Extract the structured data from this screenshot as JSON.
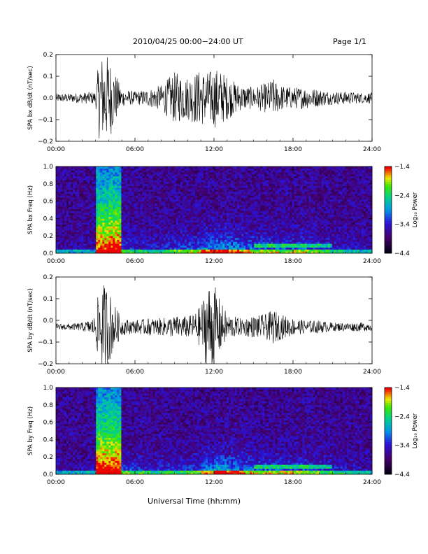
{
  "header": {
    "title": "2010/04/25  00:00−24:00 UT",
    "page": "Page 1/1"
  },
  "xlabel": "Universal Time (hh:mm)",
  "chart_data": [
    {
      "type": "line",
      "panel": "bx-waveform",
      "ylabel": "SPA bx dB/dt (nT/sec)",
      "xlim_hours": [
        0,
        24
      ],
      "ylim": [
        -0.2,
        0.2
      ],
      "x_ticks": [
        "00:00",
        "06:00",
        "12:00",
        "18:00",
        "24:00"
      ],
      "y_ticks": [
        "−0.2",
        "−0.1",
        "0.0",
        "0.1",
        "0.2"
      ],
      "series": [
        {
          "x": [
            0,
            1,
            2,
            3,
            3.3,
            3.5,
            3.8,
            4.0,
            4.3,
            5,
            6,
            7,
            8,
            8.5,
            9,
            10,
            10.5,
            11,
            11.5,
            12,
            12.5,
            13,
            14,
            15,
            16,
            16.5,
            17,
            18,
            19,
            20,
            21,
            22,
            23,
            24
          ],
          "envelope": [
            0.02,
            0.02,
            0.025,
            0.03,
            0.2,
            0.2,
            0.2,
            0.2,
            0.15,
            0.04,
            0.03,
            0.04,
            0.06,
            0.09,
            0.12,
            0.1,
            0.12,
            0.13,
            0.12,
            0.14,
            0.13,
            0.1,
            0.06,
            0.05,
            0.07,
            0.09,
            0.06,
            0.05,
            0.05,
            0.04,
            0.03,
            0.03,
            0.025,
            0.025
          ],
          "offset": 0.0
        }
      ]
    },
    {
      "type": "heatmap",
      "panel": "bx-spectrogram",
      "ylabel": "SPA bx Freq (Hz)",
      "colorbar_label": "Log₁₀ Power",
      "colorbar_ticks": [
        "−1.4",
        "−2.4",
        "−3.4",
        "−4.4"
      ],
      "colorbar_range": [
        -4.4,
        -1.4
      ],
      "xlim_hours": [
        0,
        24
      ],
      "ylim": [
        0,
        1.0
      ],
      "x_ticks": [
        "00:00",
        "06:00",
        "12:00",
        "18:00",
        "24:00"
      ],
      "y_ticks": [
        "0.0",
        "0.2",
        "0.4",
        "0.6",
        "0.8",
        "1.0"
      ],
      "activity": [
        0.05,
        0.05,
        0.06,
        0.9,
        0.95,
        0.2,
        0.15,
        0.15,
        0.2,
        0.25,
        0.3,
        0.45,
        0.5,
        0.45,
        0.35,
        0.3,
        0.3,
        0.25,
        0.3,
        0.25,
        0.2,
        0.15,
        0.1,
        0.08
      ]
    },
    {
      "type": "line",
      "panel": "by-waveform",
      "ylabel": "SPA by dB/dt (nT/sec)",
      "xlim_hours": [
        0,
        24
      ],
      "ylim": [
        -0.2,
        0.2
      ],
      "x_ticks": [
        "00:00",
        "06:00",
        "12:00",
        "18:00",
        "24:00"
      ],
      "y_ticks": [
        "−0.2",
        "−0.1",
        "0.0",
        "0.1",
        "0.2"
      ],
      "series": [
        {
          "x": [
            0,
            1,
            2,
            2.5,
            3,
            3.3,
            3.5,
            3.8,
            4.0,
            4.3,
            5,
            6,
            7,
            8,
            9,
            10,
            10.5,
            11,
            11.5,
            12,
            12.5,
            13,
            14,
            15,
            16,
            16.5,
            17,
            18,
            19,
            20,
            21,
            22,
            23,
            24
          ],
          "envelope": [
            0.015,
            0.015,
            0.02,
            0.03,
            0.05,
            0.2,
            0.2,
            0.2,
            0.18,
            0.12,
            0.04,
            0.03,
            0.04,
            0.04,
            0.05,
            0.05,
            0.06,
            0.1,
            0.2,
            0.2,
            0.12,
            0.06,
            0.04,
            0.05,
            0.06,
            0.08,
            0.06,
            0.04,
            0.03,
            0.03,
            0.02,
            0.02,
            0.02,
            0.02
          ],
          "offset": -0.03
        }
      ]
    },
    {
      "type": "heatmap",
      "panel": "by-spectrogram",
      "ylabel": "SPA by Freq (Hz)",
      "colorbar_label": "Log₁₀ Power",
      "colorbar_ticks": [
        "−1.4",
        "−2.4",
        "−3.4",
        "−4.4"
      ],
      "colorbar_range": [
        -4.4,
        -1.4
      ],
      "xlim_hours": [
        0,
        24
      ],
      "ylim": [
        0,
        1.0
      ],
      "x_ticks": [
        "00:00",
        "06:00",
        "12:00",
        "18:00",
        "24:00"
      ],
      "y_ticks": [
        "0.0",
        "0.2",
        "0.4",
        "0.6",
        "0.8",
        "1.0"
      ],
      "activity": [
        0.05,
        0.05,
        0.07,
        0.95,
        0.95,
        0.25,
        0.2,
        0.15,
        0.2,
        0.2,
        0.25,
        0.4,
        0.55,
        0.45,
        0.35,
        0.3,
        0.3,
        0.3,
        0.3,
        0.25,
        0.2,
        0.15,
        0.1,
        0.08
      ]
    }
  ]
}
